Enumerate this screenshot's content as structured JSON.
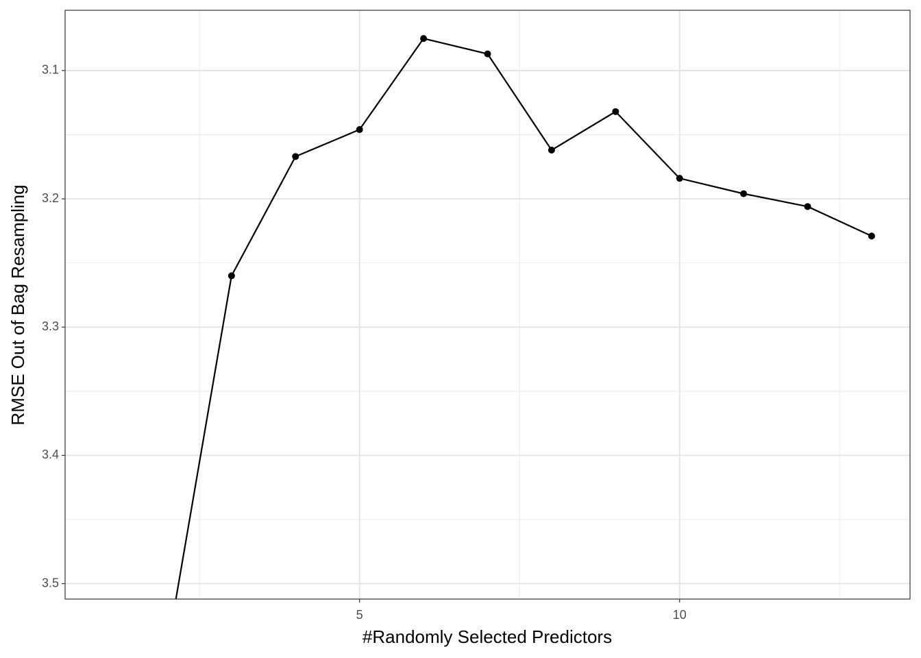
{
  "chart_data": {
    "type": "line",
    "x_label": "#Randomly Selected Predictors",
    "y_label": "RMSE Out of Bag Resampling",
    "x": [
      2,
      3,
      4,
      5,
      6,
      7,
      8,
      9,
      10,
      11,
      12,
      13
    ],
    "series": [
      {
        "color": "#000000",
        "values": [
          3.55,
          3.26,
          3.167,
          3.146,
          3.075,
          3.087,
          3.162,
          3.132,
          3.184,
          3.196,
          3.206,
          3.229
        ]
      }
    ],
    "xlim": [
      0.4,
      13.6
    ],
    "xticks": [
      5,
      10
    ],
    "ylim": [
      3.053,
      3.512
    ],
    "yticks": [
      3.1,
      3.2,
      3.3,
      3.4,
      3.5
    ],
    "y_reversed": true,
    "grid": true
  }
}
